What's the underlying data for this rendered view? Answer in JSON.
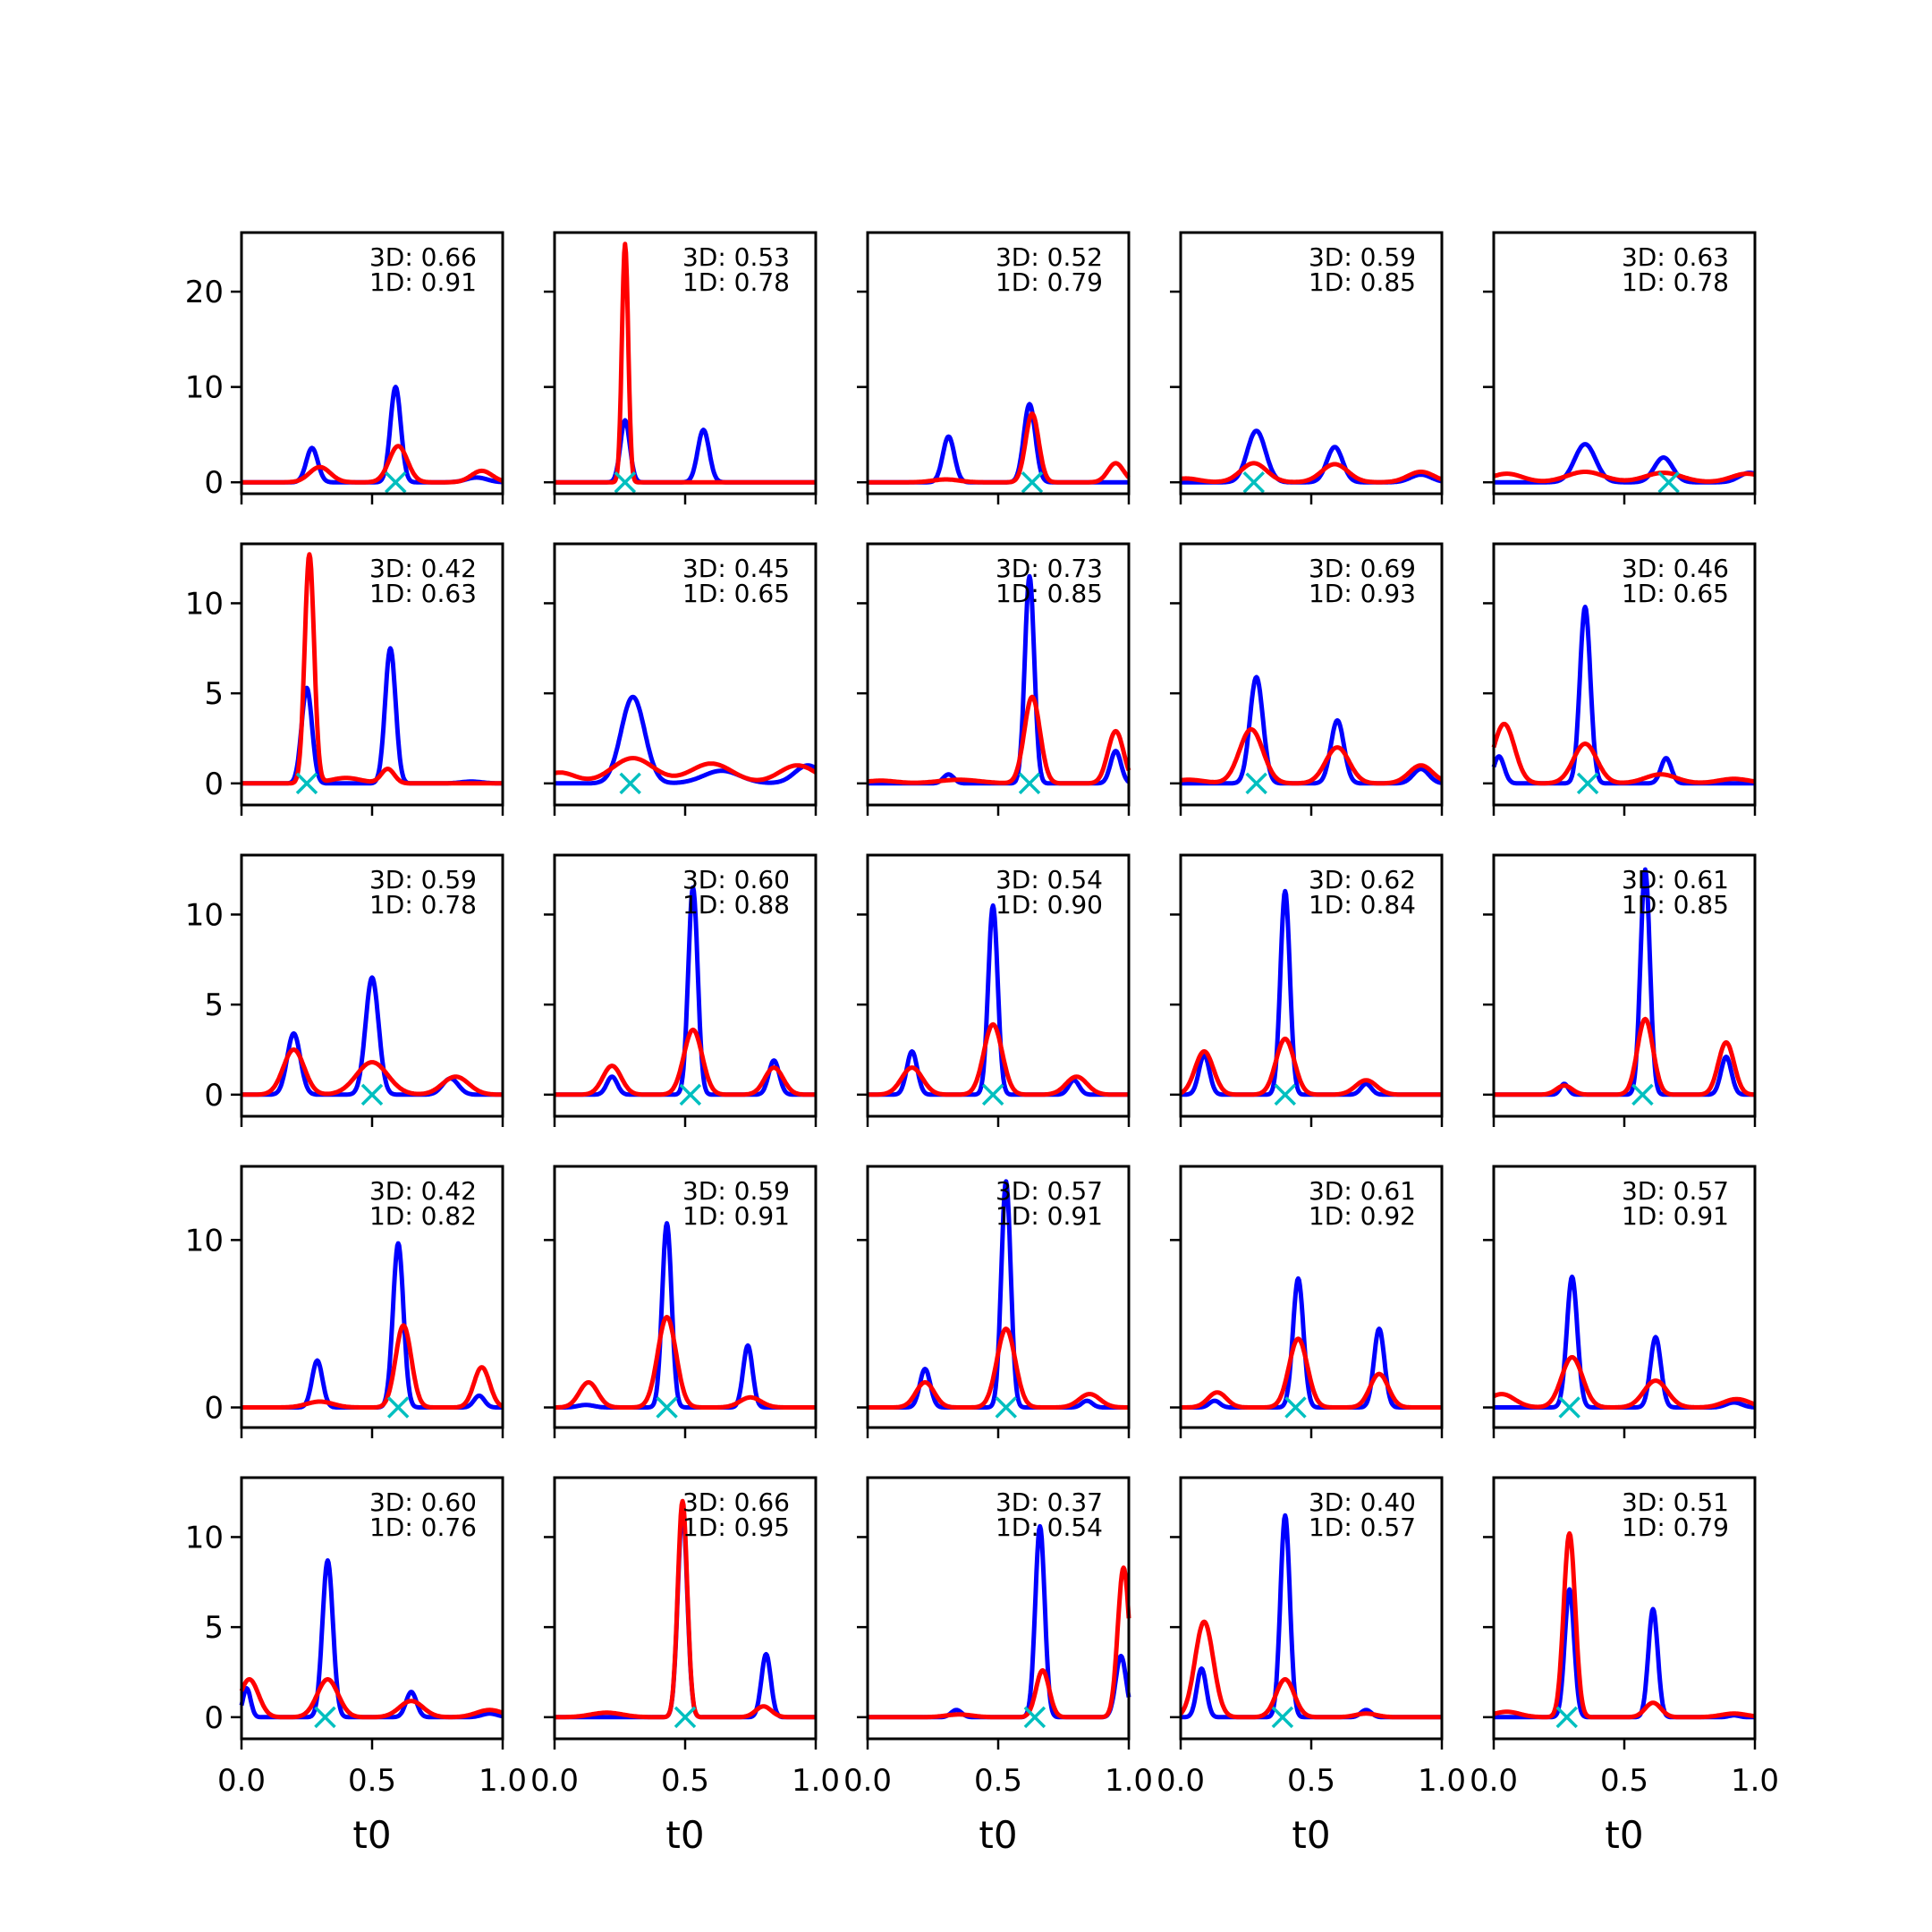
{
  "chart_data": {
    "type": "line",
    "layout": "5x5 grid of small-multiple line plots",
    "xlabel": "t0",
    "xlim": [
      0,
      1
    ],
    "x_ticks": [
      "0.0",
      "0.5",
      "1.0"
    ],
    "shared_y_per_row": true,
    "row_ylims": [
      [
        -1.2,
        26.2
      ],
      [
        -1.2,
        13.3
      ],
      [
        -1.2,
        13.3
      ],
      [
        -1.2,
        14.4
      ],
      [
        -1.2,
        13.3
      ]
    ],
    "row_y_ticks": [
      [
        "0",
        "10",
        "20"
      ],
      [
        "0",
        "5",
        "10"
      ],
      [
        "0",
        "5",
        "10"
      ],
      [
        "0",
        "10"
      ],
      [
        "0",
        "5",
        "10"
      ]
    ],
    "colors": {
      "series_a": "#0000ff",
      "series_b": "#ff0000",
      "marker": "#00bfbf"
    },
    "marker_symbol": "x",
    "grid": false,
    "legend": false,
    "panels": [
      {
        "annot": [
          "3D: 0.66",
          "1D: 0.91"
        ],
        "marker_x": 0.59,
        "blue": [
          [
            0.27,
            3.6,
            0.022
          ],
          [
            0.59,
            10.0,
            0.02
          ],
          [
            0.9,
            0.5,
            0.04
          ]
        ],
        "red": [
          [
            0.3,
            1.6,
            0.04
          ],
          [
            0.6,
            3.8,
            0.035
          ],
          [
            0.92,
            1.2,
            0.04
          ]
        ]
      },
      {
        "annot": [
          "3D: 0.53",
          "1D: 0.78"
        ],
        "marker_x": 0.27,
        "blue": [
          [
            0.27,
            6.5,
            0.018
          ],
          [
            0.57,
            5.5,
            0.022
          ]
        ],
        "red": [
          [
            0.27,
            25.0,
            0.012
          ]
        ]
      },
      {
        "annot": [
          "3D: 0.52",
          "1D: 0.79"
        ],
        "marker_x": 0.63,
        "blue": [
          [
            0.31,
            4.8,
            0.022
          ],
          [
            0.62,
            8.2,
            0.022
          ]
        ],
        "red": [
          [
            0.63,
            7.2,
            0.025
          ],
          [
            0.95,
            2.0,
            0.03
          ],
          [
            0.3,
            0.3,
            0.05
          ]
        ]
      },
      {
        "annot": [
          "3D: 0.59",
          "1D: 0.85"
        ],
        "marker_x": 0.28,
        "blue": [
          [
            0.29,
            5.4,
            0.035
          ],
          [
            0.59,
            3.7,
            0.03
          ],
          [
            0.92,
            0.8,
            0.04
          ]
        ],
        "red": [
          [
            0.28,
            2.0,
            0.05
          ],
          [
            0.59,
            1.9,
            0.05
          ],
          [
            0.92,
            1.1,
            0.05
          ],
          [
            0.02,
            0.4,
            0.05
          ]
        ]
      },
      {
        "annot": [
          "3D: 0.63",
          "1D: 0.78"
        ],
        "marker_x": 0.67,
        "blue": [
          [
            0.35,
            4.0,
            0.04
          ],
          [
            0.65,
            2.6,
            0.035
          ],
          [
            0.98,
            1.0,
            0.04
          ]
        ],
        "red": [
          [
            0.05,
            0.9,
            0.06
          ],
          [
            0.35,
            1.1,
            0.07
          ],
          [
            0.65,
            1.0,
            0.07
          ],
          [
            0.97,
            0.9,
            0.06
          ]
        ]
      },
      {
        "annot": [
          "3D: 0.42",
          "1D: 0.63"
        ],
        "marker_x": 0.25,
        "blue": [
          [
            0.25,
            5.3,
            0.02
          ],
          [
            0.57,
            7.5,
            0.02
          ],
          [
            0.88,
            0.1,
            0.04
          ]
        ],
        "red": [
          [
            0.26,
            12.7,
            0.018
          ],
          [
            0.56,
            0.8,
            0.025
          ],
          [
            0.4,
            0.3,
            0.06
          ]
        ]
      },
      {
        "annot": [
          "3D: 0.45",
          "1D: 0.65"
        ],
        "marker_x": 0.29,
        "blue": [
          [
            0.3,
            4.8,
            0.045
          ],
          [
            0.64,
            0.7,
            0.07
          ],
          [
            0.97,
            1.0,
            0.05
          ]
        ],
        "red": [
          [
            0.02,
            0.6,
            0.06
          ],
          [
            0.3,
            1.4,
            0.08
          ],
          [
            0.6,
            1.1,
            0.08
          ],
          [
            0.93,
            1.0,
            0.07
          ]
        ]
      },
      {
        "annot": [
          "3D: 0.73",
          "1D: 0.85"
        ],
        "marker_x": 0.62,
        "blue": [
          [
            0.31,
            0.5,
            0.02
          ],
          [
            0.62,
            11.5,
            0.018
          ],
          [
            0.95,
            1.8,
            0.02
          ]
        ],
        "red": [
          [
            0.63,
            4.8,
            0.03
          ],
          [
            0.95,
            2.9,
            0.03
          ],
          [
            0.05,
            0.15,
            0.06
          ],
          [
            0.35,
            0.2,
            0.08
          ]
        ]
      },
      {
        "annot": [
          "3D: 0.69",
          "1D: 0.93"
        ],
        "marker_x": 0.29,
        "blue": [
          [
            0.29,
            5.9,
            0.025
          ],
          [
            0.6,
            3.5,
            0.025
          ],
          [
            0.92,
            0.8,
            0.03
          ]
        ],
        "red": [
          [
            0.27,
            3.0,
            0.045
          ],
          [
            0.6,
            2.0,
            0.045
          ],
          [
            0.92,
            1.0,
            0.045
          ],
          [
            0.03,
            0.2,
            0.06
          ]
        ]
      },
      {
        "annot": [
          "3D: 0.46",
          "1D: 0.65"
        ],
        "marker_x": 0.36,
        "blue": [
          [
            0.02,
            1.5,
            0.02
          ],
          [
            0.35,
            9.8,
            0.02
          ],
          [
            0.66,
            1.4,
            0.02
          ]
        ],
        "red": [
          [
            0.04,
            3.3,
            0.04
          ],
          [
            0.35,
            2.2,
            0.045
          ],
          [
            0.64,
            0.5,
            0.06
          ],
          [
            0.92,
            0.25,
            0.06
          ]
        ]
      },
      {
        "annot": [
          "3D: 0.59",
          "1D: 0.78"
        ],
        "marker_x": 0.5,
        "blue": [
          [
            0.2,
            3.4,
            0.025
          ],
          [
            0.5,
            6.5,
            0.025
          ],
          [
            0.8,
            0.9,
            0.03
          ]
        ],
        "red": [
          [
            0.2,
            2.5,
            0.04
          ],
          [
            0.5,
            1.8,
            0.06
          ],
          [
            0.82,
            1.0,
            0.05
          ]
        ]
      },
      {
        "annot": [
          "3D: 0.60",
          "1D: 0.88"
        ],
        "marker_x": 0.52,
        "blue": [
          [
            0.22,
            1.0,
            0.02
          ],
          [
            0.53,
            11.5,
            0.018
          ],
          [
            0.84,
            1.9,
            0.02
          ]
        ],
        "red": [
          [
            0.22,
            1.6,
            0.035
          ],
          [
            0.53,
            3.6,
            0.035
          ],
          [
            0.84,
            1.5,
            0.035
          ]
        ]
      },
      {
        "annot": [
          "3D: 0.54",
          "1D: 0.90"
        ],
        "marker_x": 0.48,
        "blue": [
          [
            0.17,
            2.4,
            0.02
          ],
          [
            0.48,
            10.5,
            0.018
          ],
          [
            0.79,
            0.8,
            0.02
          ]
        ],
        "red": [
          [
            0.17,
            1.5,
            0.04
          ],
          [
            0.48,
            3.9,
            0.035
          ],
          [
            0.8,
            1.0,
            0.04
          ]
        ]
      },
      {
        "annot": [
          "3D: 0.62",
          "1D: 0.84"
        ],
        "marker_x": 0.4,
        "blue": [
          [
            0.09,
            2.2,
            0.02
          ],
          [
            0.4,
            11.3,
            0.018
          ],
          [
            0.71,
            0.6,
            0.02
          ]
        ],
        "red": [
          [
            0.09,
            2.4,
            0.035
          ],
          [
            0.4,
            3.1,
            0.035
          ],
          [
            0.71,
            0.8,
            0.04
          ]
        ]
      },
      {
        "annot": [
          "3D: 0.61",
          "1D: 0.85"
        ],
        "marker_x": 0.57,
        "blue": [
          [
            0.27,
            0.6,
            0.015
          ],
          [
            0.58,
            12.5,
            0.018
          ],
          [
            0.89,
            2.1,
            0.02
          ]
        ],
        "red": [
          [
            0.27,
            0.5,
            0.03
          ],
          [
            0.58,
            4.2,
            0.03
          ],
          [
            0.89,
            2.9,
            0.03
          ]
        ]
      },
      {
        "annot": [
          "3D: 0.42",
          "1D: 0.82"
        ],
        "marker_x": 0.6,
        "blue": [
          [
            0.29,
            2.8,
            0.02
          ],
          [
            0.6,
            9.8,
            0.02
          ],
          [
            0.91,
            0.7,
            0.02
          ]
        ],
        "red": [
          [
            0.62,
            4.9,
            0.03
          ],
          [
            0.92,
            2.4,
            0.03
          ],
          [
            0.3,
            0.35,
            0.05
          ]
        ]
      },
      {
        "annot": [
          "3D: 0.59",
          "1D: 0.91"
        ],
        "marker_x": 0.43,
        "blue": [
          [
            0.43,
            11.0,
            0.018
          ],
          [
            0.74,
            3.7,
            0.018
          ],
          [
            0.12,
            0.15,
            0.03
          ]
        ],
        "red": [
          [
            0.13,
            1.5,
            0.035
          ],
          [
            0.43,
            5.4,
            0.035
          ],
          [
            0.75,
            0.6,
            0.04
          ]
        ]
      },
      {
        "annot": [
          "3D: 0.57",
          "1D: 0.91"
        ],
        "marker_x": 0.53,
        "blue": [
          [
            0.22,
            2.3,
            0.02
          ],
          [
            0.53,
            13.5,
            0.018
          ],
          [
            0.84,
            0.4,
            0.02
          ]
        ],
        "red": [
          [
            0.22,
            1.5,
            0.035
          ],
          [
            0.53,
            4.7,
            0.035
          ],
          [
            0.85,
            0.8,
            0.04
          ]
        ]
      },
      {
        "annot": [
          "3D: 0.61",
          "1D: 0.92"
        ],
        "marker_x": 0.44,
        "blue": [
          [
            0.13,
            0.4,
            0.02
          ],
          [
            0.45,
            7.7,
            0.02
          ],
          [
            0.76,
            4.7,
            0.02
          ]
        ],
        "red": [
          [
            0.14,
            0.9,
            0.035
          ],
          [
            0.45,
            4.1,
            0.035
          ],
          [
            0.76,
            2.0,
            0.035
          ]
        ]
      },
      {
        "annot": [
          "3D: 0.57",
          "1D: 0.91"
        ],
        "marker_x": 0.29,
        "blue": [
          [
            0.3,
            7.8,
            0.02
          ],
          [
            0.62,
            4.2,
            0.02
          ],
          [
            0.92,
            0.3,
            0.03
          ]
        ],
        "red": [
          [
            0.03,
            0.8,
            0.05
          ],
          [
            0.3,
            3.0,
            0.04
          ],
          [
            0.62,
            1.6,
            0.045
          ],
          [
            0.93,
            0.5,
            0.05
          ]
        ]
      },
      {
        "annot": [
          "3D: 0.60",
          "1D: 0.76"
        ],
        "marker_x": 0.32,
        "blue": [
          [
            0.02,
            1.6,
            0.015
          ],
          [
            0.33,
            8.7,
            0.02
          ],
          [
            0.65,
            1.4,
            0.02
          ],
          [
            0.95,
            0.2,
            0.03
          ]
        ],
        "red": [
          [
            0.03,
            2.1,
            0.035
          ],
          [
            0.33,
            2.1,
            0.04
          ],
          [
            0.65,
            0.9,
            0.045
          ],
          [
            0.95,
            0.4,
            0.05
          ]
        ]
      },
      {
        "annot": [
          "3D: 0.66",
          "1D: 0.95"
        ],
        "marker_x": 0.5,
        "blue": [
          [
            0.49,
            11.5,
            0.018
          ],
          [
            0.81,
            3.5,
            0.018
          ]
        ],
        "red": [
          [
            0.49,
            12.0,
            0.018
          ],
          [
            0.8,
            0.6,
            0.03
          ],
          [
            0.2,
            0.25,
            0.06
          ]
        ]
      },
      {
        "annot": [
          "3D: 0.37",
          "1D: 0.54"
        ],
        "marker_x": 0.64,
        "blue": [
          [
            0.34,
            0.4,
            0.02
          ],
          [
            0.66,
            10.6,
            0.018
          ],
          [
            0.97,
            3.4,
            0.02
          ]
        ],
        "red": [
          [
            0.67,
            2.6,
            0.025
          ],
          [
            0.98,
            8.3,
            0.022
          ],
          [
            0.35,
            0.15,
            0.05
          ]
        ]
      },
      {
        "annot": [
          "3D: 0.40",
          "1D: 0.57"
        ],
        "marker_x": 0.39,
        "blue": [
          [
            0.08,
            2.7,
            0.018
          ],
          [
            0.4,
            11.2,
            0.018
          ],
          [
            0.71,
            0.4,
            0.02
          ]
        ],
        "red": [
          [
            0.09,
            5.3,
            0.035
          ],
          [
            0.4,
            2.1,
            0.035
          ],
          [
            0.71,
            0.2,
            0.04
          ]
        ]
      },
      {
        "annot": [
          "3D: 0.51",
          "1D: 0.79"
        ],
        "marker_x": 0.28,
        "blue": [
          [
            0.29,
            7.1,
            0.018
          ],
          [
            0.61,
            6.0,
            0.018
          ],
          [
            0.92,
            0.1,
            0.02
          ]
        ],
        "red": [
          [
            0.29,
            10.2,
            0.022
          ],
          [
            0.61,
            0.8,
            0.03
          ],
          [
            0.05,
            0.3,
            0.05
          ],
          [
            0.92,
            0.2,
            0.05
          ]
        ]
      }
    ]
  }
}
